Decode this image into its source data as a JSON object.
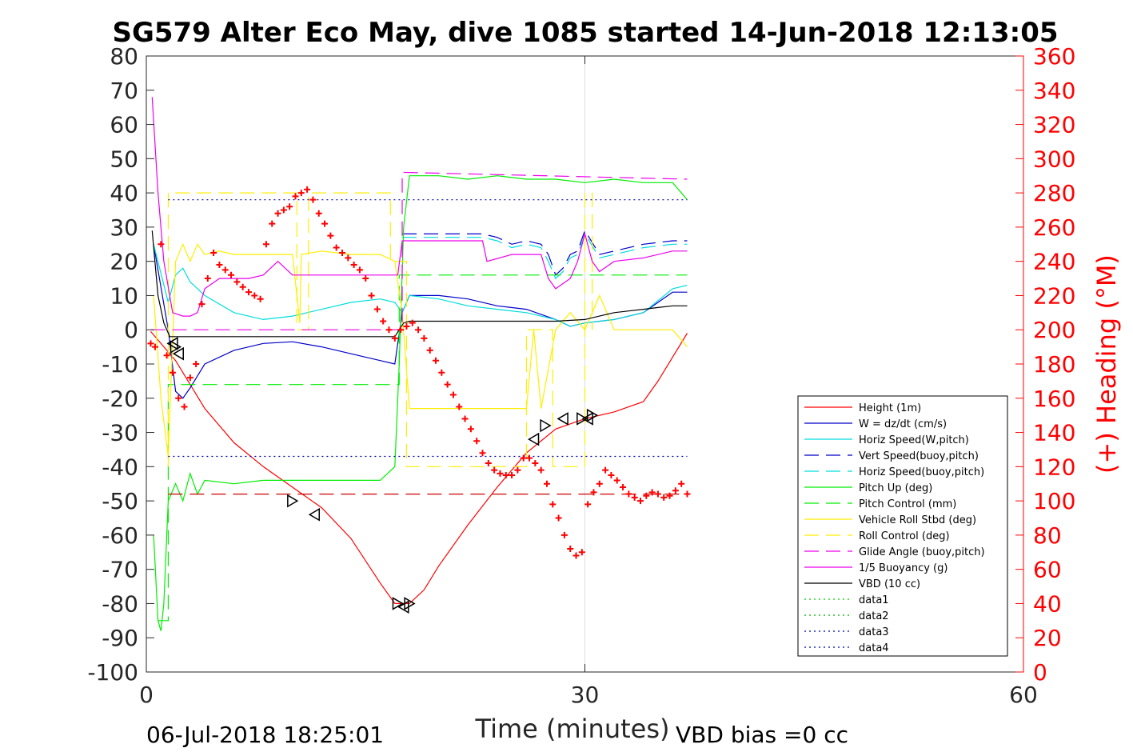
{
  "chart_data": {
    "type": "line",
    "title": "SG579 Alter Eco May, dive 1085 started 14-Jun-2018 12:13:05",
    "xlabel": "Time (minutes)",
    "ylabel_right": "(+) Heading (°M)",
    "xlim": [
      0,
      60
    ],
    "ylim": [
      -100,
      80
    ],
    "ylim_right": [
      0,
      360
    ],
    "x_ticks": [
      0,
      30,
      60
    ],
    "y_ticks": [
      80,
      70,
      60,
      50,
      40,
      30,
      20,
      10,
      0,
      -10,
      -20,
      -30,
      -40,
      -50,
      -60,
      -70,
      -80,
      -90,
      -100
    ],
    "y_ticks_right": [
      360,
      340,
      320,
      300,
      280,
      260,
      240,
      220,
      200,
      180,
      160,
      140,
      120,
      100,
      80,
      60,
      40,
      20,
      0
    ],
    "grid": "x only at 30",
    "legend_position": "lower-right",
    "series": [
      {
        "name": "Height (1m)",
        "color": "#ff0000",
        "style": "solid",
        "x": [
          0.3,
          2,
          4,
          6,
          8,
          10,
          12,
          14,
          16,
          17,
          18,
          19,
          20,
          22,
          24,
          26,
          28,
          30,
          32,
          34,
          35,
          36,
          37
        ],
        "y": [
          -0.5,
          -9,
          -23,
          -33,
          -40,
          -46,
          -52,
          -61,
          -74,
          -80,
          -80,
          -76,
          -69,
          -57,
          -46,
          -36,
          -29,
          -26,
          -24,
          -21,
          -15,
          -8,
          -1
        ]
      },
      {
        "name": "W = dz/dt (cm/s)",
        "color": "#0000cc",
        "style": "solid",
        "x": [
          0.5,
          1.5,
          2,
          2.5,
          3,
          4,
          6,
          8,
          10,
          12,
          14,
          16,
          17,
          17.5,
          18,
          20,
          22,
          24,
          26,
          28,
          29,
          30,
          32,
          34,
          36,
          37
        ],
        "y": [
          25,
          0,
          -18,
          -20,
          -17,
          -10,
          -6,
          -4,
          -3.5,
          -5,
          -7,
          -9,
          -10,
          5,
          10,
          10,
          9,
          7,
          6,
          3,
          1,
          2,
          3,
          5,
          11,
          11
        ]
      },
      {
        "name": "Horiz Speed(W,pitch)",
        "color": "#00dddd",
        "style": "solid",
        "x": [
          0.5,
          1.5,
          2,
          2.5,
          3,
          4,
          6,
          8,
          10,
          12,
          14,
          16,
          17,
          17.5,
          18,
          20,
          22,
          24,
          26,
          28,
          29,
          30,
          32,
          34,
          36,
          37
        ],
        "y": [
          25,
          8,
          16,
          18,
          14,
          10,
          5,
          3,
          4,
          6,
          8,
          9,
          8,
          5,
          10,
          9,
          7,
          6,
          5,
          3,
          1,
          2,
          3,
          5,
          12,
          13
        ]
      },
      {
        "name": "Vert Speed(buoy,pitch)",
        "color": "#0000cc",
        "style": "dashed",
        "x": [
          17.5,
          18,
          20,
          23,
          24,
          25,
          26,
          27,
          27.5,
          28,
          28.5,
          29,
          29.5,
          30,
          31,
          32,
          34,
          36,
          37
        ],
        "y": [
          28,
          28,
          28,
          28,
          27,
          25,
          26,
          25,
          22,
          16,
          18,
          22,
          23,
          29,
          22,
          23,
          25,
          26,
          26
        ]
      },
      {
        "name": "Horiz Speed(buoy,pitch)",
        "color": "#00dddd",
        "style": "dashed",
        "x": [
          17.5,
          18,
          20,
          23,
          24,
          25,
          26,
          27,
          27.5,
          28,
          28.5,
          29,
          29.5,
          30,
          31,
          32,
          34,
          36,
          37
        ],
        "y": [
          27,
          27,
          27,
          27,
          26,
          24,
          25,
          24,
          20,
          15,
          17,
          21,
          22,
          28,
          21,
          22,
          24,
          25,
          25
        ]
      },
      {
        "name": "Pitch Up (deg)",
        "color": "#00ee00",
        "style": "solid",
        "x": [
          0.5,
          0.8,
          1.0,
          1.2,
          1.5,
          2,
          2.5,
          3,
          3.5,
          4,
          6,
          8,
          10,
          12,
          14,
          16,
          17,
          17.3,
          17.6,
          18,
          20,
          22,
          24,
          26,
          28,
          30,
          32,
          34,
          36,
          37
        ],
        "y": [
          -60,
          -85,
          -88,
          -80,
          -50,
          -45,
          -50,
          -42,
          -48,
          -44,
          -45,
          -44,
          -44,
          -44,
          -44,
          -44,
          -40,
          -10,
          30,
          45,
          45,
          44,
          45,
          44,
          44,
          43,
          44,
          43,
          43,
          38
        ]
      },
      {
        "name": "Pitch Control (mm)",
        "color": "#00ee00",
        "style": "dashed",
        "x": [
          0.8,
          1.5,
          1.5,
          17.3,
          17.3,
          37
        ],
        "y": [
          -85,
          -85,
          -16,
          -16,
          16,
          16
        ]
      },
      {
        "name": "Vehicle Roll Stbd (deg)",
        "color": "#ffee00",
        "style": "solid",
        "x": [
          0.5,
          1.0,
          1.5,
          2,
          2.5,
          3,
          3.5,
          4,
          5,
          6,
          8,
          10,
          10.5,
          10.6,
          12,
          14,
          16,
          17,
          17.5,
          18,
          20,
          22,
          24,
          26,
          26.5,
          27,
          28,
          29,
          30,
          31,
          32,
          34,
          36,
          37
        ],
        "y": [
          10,
          -20,
          -37,
          20,
          25,
          20,
          25,
          22,
          23,
          22,
          22,
          22,
          2,
          22,
          23,
          22,
          22,
          20,
          5,
          -23,
          -23,
          -23,
          -23,
          -23,
          0,
          -23,
          0,
          5,
          0,
          10,
          0,
          0,
          0,
          -5
        ]
      },
      {
        "name": "Roll Control (deg)",
        "color": "#ffee00",
        "style": "dashed",
        "x": [
          1.5,
          1.5,
          10.3,
          10.3,
          11.1,
          11.1,
          16.7,
          16.7,
          17.8,
          17.8,
          26.0,
          26.0,
          27.8,
          27.8,
          30.0,
          30.0,
          30.5,
          30.5
        ],
        "y": [
          -40,
          40,
          40,
          0,
          0,
          40,
          40,
          20,
          20,
          -40,
          -40,
          0,
          0,
          -40,
          -40,
          40,
          40,
          0
        ]
      },
      {
        "name": "Glide Angle (buoy,pitch)",
        "color": "#ee00ee",
        "style": "dashed",
        "x": [
          0.3,
          17.5,
          17.5,
          37
        ],
        "y": [
          0,
          0,
          46,
          44
        ]
      },
      {
        "name": "1/5 Buoyancy (g)",
        "color": "#ee00ee",
        "style": "solid",
        "x": [
          0.4,
          0.8,
          1.2,
          1.8,
          2.5,
          3,
          3.5,
          4,
          5,
          6,
          7,
          8,
          9,
          10,
          11,
          12,
          14,
          16,
          17.2,
          17.5,
          18,
          20,
          23,
          23.3,
          25,
          26,
          27,
          27.5,
          28,
          29,
          29.5,
          30,
          30.5,
          31,
          32,
          34,
          36,
          37
        ],
        "y": [
          68,
          40,
          20,
          5,
          4,
          4,
          5,
          12,
          15,
          15,
          15,
          16,
          20,
          16,
          16,
          16,
          16,
          16,
          16,
          26,
          26,
          26,
          26,
          20,
          22,
          22,
          22,
          15,
          12,
          15,
          20,
          28,
          20,
          17,
          20,
          21,
          23,
          23
        ]
      },
      {
        "name": "VBD (10 cc)",
        "color": "#000000",
        "style": "solid",
        "x": [
          0.4,
          0.8,
          1.2,
          1.6,
          2.2,
          17,
          17.3,
          17.6,
          18,
          22,
          28,
          30,
          31,
          32,
          33,
          34,
          35,
          36,
          37
        ],
        "y": [
          29,
          10,
          2,
          -2,
          -2,
          -2,
          0,
          2,
          2.5,
          2.5,
          2.5,
          3,
          4,
          5,
          5.5,
          6,
          6.5,
          7,
          7
        ]
      },
      {
        "name": "data1",
        "color": "#00cc00",
        "style": "dotted",
        "x": [],
        "y": []
      },
      {
        "name": "data2",
        "color": "#00aa00",
        "style": "dotted",
        "x": [],
        "y": []
      },
      {
        "name": "data3",
        "color": "#0000aa",
        "style": "dotted",
        "x": [
          1.5,
          37
        ],
        "y": [
          38,
          38
        ]
      },
      {
        "name": "data4",
        "color": "#0000aa",
        "style": "dotted",
        "x": [
          1.5,
          37
        ],
        "y": [
          -37,
          -37
        ]
      },
      {
        "name": "",
        "color": "#cc0000",
        "style": "dashed",
        "x": [
          1.5,
          37
        ],
        "y": [
          -48,
          -48
        ]
      }
    ],
    "heading": {
      "color": "#ff0000",
      "marker": "+",
      "axis": "right",
      "x": [
        0.3,
        0.6,
        1.0,
        1.4,
        1.8,
        2.2,
        2.6,
        3.0,
        3.4,
        3.8,
        4.2,
        4.6,
        5.0,
        5.4,
        5.8,
        6.2,
        6.6,
        7.0,
        7.4,
        7.8,
        8.2,
        8.6,
        9.0,
        9.4,
        9.8,
        10.2,
        10.6,
        11.0,
        11.4,
        11.8,
        12.2,
        12.6,
        13.0,
        13.4,
        13.8,
        14.2,
        14.6,
        15.0,
        15.4,
        15.8,
        16.2,
        16.6,
        17.0,
        17.4,
        17.8,
        18.2,
        18.6,
        19.0,
        19.4,
        19.8,
        20.2,
        20.6,
        21.0,
        21.4,
        21.8,
        22.2,
        22.6,
        23.0,
        23.4,
        23.8,
        24.2,
        24.6,
        25.0,
        25.4,
        25.8,
        26.2,
        26.6,
        27.0,
        27.4,
        27.8,
        28.2,
        28.6,
        29.0,
        29.4,
        29.8,
        30.2,
        30.6,
        31.0,
        31.4,
        31.8,
        32.2,
        32.6,
        33.0,
        33.4,
        33.8,
        34.2,
        34.6,
        35.0,
        35.4,
        35.8,
        36.2,
        36.6,
        37.0
      ],
      "y": [
        192,
        190,
        250,
        185,
        175,
        160,
        155,
        172,
        180,
        215,
        230,
        245,
        238,
        235,
        232,
        228,
        225,
        222,
        220,
        218,
        250,
        262,
        268,
        270,
        272,
        278,
        280,
        282,
        276,
        268,
        262,
        255,
        248,
        245,
        242,
        238,
        235,
        230,
        220,
        212,
        205,
        200,
        195,
        200,
        202,
        204,
        200,
        195,
        188,
        182,
        175,
        168,
        162,
        155,
        148,
        142,
        135,
        128,
        122,
        118,
        116,
        115,
        115,
        118,
        125,
        125,
        122,
        118,
        110,
        98,
        90,
        80,
        72,
        68,
        70,
        98,
        105,
        110,
        118,
        115,
        112,
        108,
        104,
        102,
        100,
        103,
        105,
        104,
        102,
        103,
        106,
        110,
        104
      ]
    },
    "markers": {
      "symbol": "triangle",
      "x": [
        1.8,
        2.0,
        2.2,
        10.0,
        11.5,
        17.2,
        17.6,
        18.0,
        26.5,
        27.3,
        28.5,
        29.8,
        30.2,
        30.5
      ],
      "y": [
        -4,
        -5,
        -7,
        -50,
        -54,
        -80,
        -81,
        -80,
        -32,
        -28,
        -26,
        -26,
        -26,
        -25
      ]
    }
  },
  "footer": {
    "date": "06-Jul-2018 18:25:01",
    "vbd_bias": "VBD bias =0 cc"
  }
}
